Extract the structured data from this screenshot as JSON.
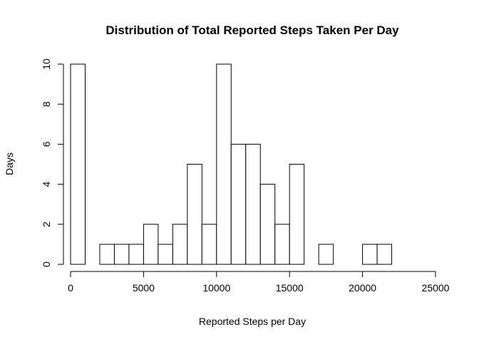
{
  "chart_data": {
    "type": "bar",
    "title": "Distribution of Total Reported Steps Taken Per Day",
    "xlabel": "Reported Steps per Day",
    "ylabel": "Days",
    "bin_width": 1000,
    "bin_starts": [
      0,
      1000,
      2000,
      3000,
      4000,
      5000,
      6000,
      7000,
      8000,
      9000,
      10000,
      11000,
      12000,
      13000,
      14000,
      15000,
      16000,
      17000,
      18000,
      19000,
      20000,
      21000
    ],
    "values": [
      10,
      0,
      1,
      1,
      1,
      2,
      1,
      2,
      5,
      2,
      10,
      6,
      6,
      4,
      2,
      5,
      0,
      1,
      0,
      0,
      1,
      1
    ],
    "xlim": [
      0,
      25000
    ],
    "ylim": [
      0,
      10
    ],
    "x_ticks": [
      0,
      5000,
      10000,
      15000,
      20000,
      25000
    ],
    "y_ticks": [
      0,
      2,
      4,
      6,
      8,
      10
    ],
    "grid": false,
    "legend": "none"
  }
}
